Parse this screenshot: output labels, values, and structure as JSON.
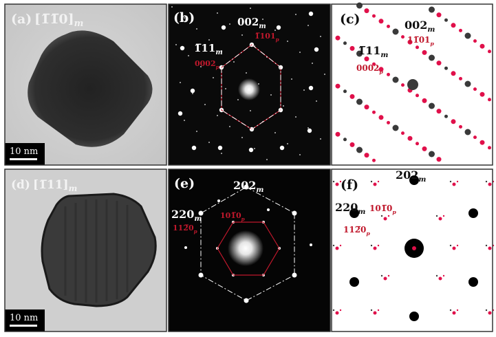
{
  "panels": {
    "a": {
      "letter": "(a)",
      "zone_axis": "[1̅1̅0]",
      "zone_sub": "m",
      "scale_bar": "10 nm"
    },
    "b": {
      "letter": "(b)",
      "labels": [
        {
          "main": "002",
          "sub": "m",
          "color": "#ffffff"
        },
        {
          "main": "1̅11",
          "sub": "m",
          "color": "#ffffff"
        },
        {
          "main": "1̅101",
          "sub": "p",
          "color": "#c0182c"
        },
        {
          "main": "0002",
          "sub": "p",
          "color": "#c0182c"
        }
      ]
    },
    "c": {
      "letter": "(c)",
      "labels": [
        {
          "main": "002",
          "sub": "m",
          "color": "#111111"
        },
        {
          "main": "1̅11",
          "sub": "m",
          "color": "#111111"
        },
        {
          "main": "11̅01",
          "sub": "p",
          "color": "#c0182c"
        },
        {
          "main": "0002",
          "sub": "p",
          "color": "#c0182c"
        }
      ]
    },
    "d": {
      "letter": "(d)",
      "zone_axis": "[1̅11]",
      "zone_sub": "m",
      "scale_bar": "10 nm"
    },
    "e": {
      "letter": "(e)",
      "labels": [
        {
          "main": "202",
          "sub": "m",
          "color": "#ffffff"
        },
        {
          "main": "220",
          "sub": "m",
          "color": "#ffffff"
        },
        {
          "main": "101̅0",
          "sub": "p",
          "color": "#c0182c"
        },
        {
          "main": "112̅0",
          "sub": "p",
          "color": "#c0182c"
        }
      ]
    },
    "f": {
      "letter": "(f)",
      "labels": [
        {
          "main": "202",
          "sub": "m",
          "color": "#111111"
        },
        {
          "main": "220",
          "sub": "m",
          "color": "#111111"
        },
        {
          "main": "101̅0",
          "sub": "p",
          "color": "#c0182c"
        },
        {
          "main": "112̅0",
          "sub": "p",
          "color": "#c0182c"
        }
      ]
    }
  },
  "colors": {
    "matrix_spot": "#3a3a3a",
    "precipitate_spot": "#e0104a",
    "red_label": "#c0182c"
  }
}
